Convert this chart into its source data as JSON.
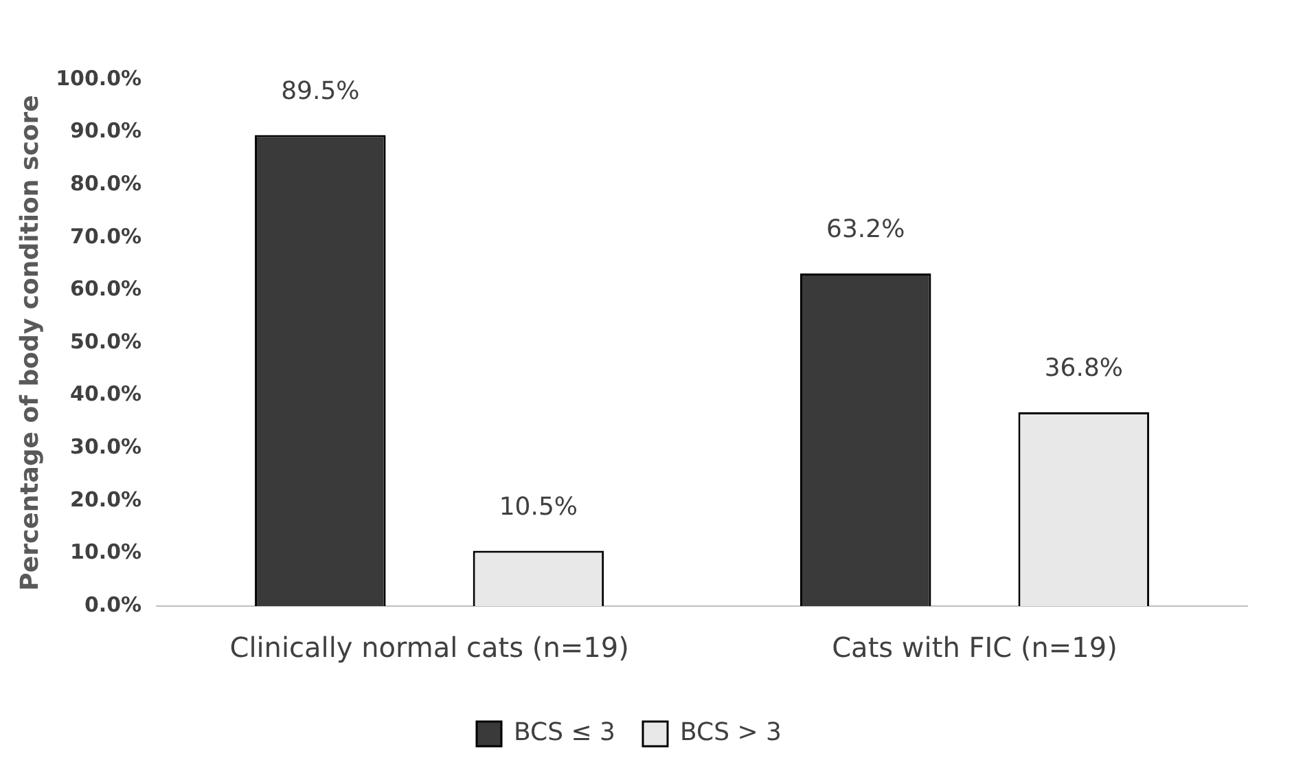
{
  "chart_data": {
    "type": "bar",
    "ylabel": "Percentage of body condition score",
    "categories": [
      "Clinically normal cats (n=19)",
      "Cats with FIC (n=19)"
    ],
    "series": [
      {
        "name": "BCS ≤ 3",
        "color": "#3a3a3a",
        "values": [
          89.5,
          63.2
        ],
        "value_labels": [
          "89.5%",
          "63.2%"
        ]
      },
      {
        "name": "BCS > 3",
        "color": "#e8e8e8",
        "values": [
          10.5,
          36.8
        ],
        "value_labels": [
          "10.5%",
          "36.8%"
        ]
      }
    ],
    "ylim": [
      0,
      100
    ],
    "yticks": [
      {
        "value": 0,
        "label": "0.0%"
      },
      {
        "value": 10,
        "label": "10.0%"
      },
      {
        "value": 20,
        "label": "20.0%"
      },
      {
        "value": 30,
        "label": "30.0%"
      },
      {
        "value": 40,
        "label": "40.0%"
      },
      {
        "value": 50,
        "label": "50.0%"
      },
      {
        "value": 60,
        "label": "60.0%"
      },
      {
        "value": 70,
        "label": "70.0%"
      },
      {
        "value": 80,
        "label": "80.0%"
      },
      {
        "value": 90,
        "label": "90.0%"
      },
      {
        "value": 100,
        "label": "100.0%"
      }
    ],
    "grid": false,
    "legend": "bottom"
  }
}
